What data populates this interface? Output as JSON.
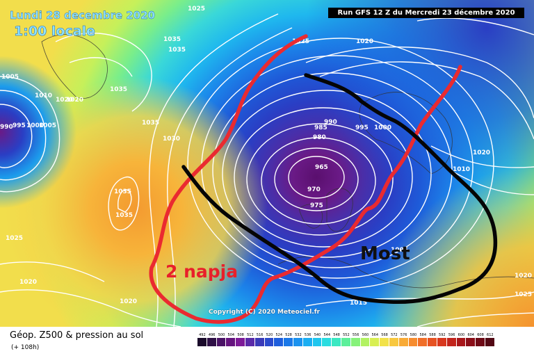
{
  "header": {
    "valid_date": "Lundi 28 decembre 2020",
    "local_time": "1:00 locale",
    "run_info": "Run GFS 12 Z du Mercredi 23 décembre 2020"
  },
  "annotations": {
    "most": "Most",
    "napja": "2 napja"
  },
  "copyright": "Copyright (C) 2020 Meteociel.fr",
  "footer": {
    "title": "Géop. Z500 & pression au sol",
    "lead_time": "(+ 108h)"
  },
  "isobar_labels": [
    {
      "text": "1025"
    },
    {
      "text": "1035"
    },
    {
      "text": "1005"
    },
    {
      "text": "1010"
    },
    {
      "text": "1020"
    },
    {
      "text": "1035"
    },
    {
      "text": "1035"
    },
    {
      "text": "1020"
    },
    {
      "text": "990"
    },
    {
      "text": "995"
    },
    {
      "text": "1000"
    },
    {
      "text": "1005"
    },
    {
      "text": "1035"
    },
    {
      "text": "1030"
    },
    {
      "text": "1035"
    },
    {
      "text": "1035"
    },
    {
      "text": "1025"
    },
    {
      "text": "1020"
    },
    {
      "text": "1020"
    },
    {
      "text": "1025"
    },
    {
      "text": "1020"
    },
    {
      "text": "990"
    },
    {
      "text": "985"
    },
    {
      "text": "980"
    },
    {
      "text": "965"
    },
    {
      "text": "970"
    },
    {
      "text": "975"
    },
    {
      "text": "995"
    },
    {
      "text": "1000"
    },
    {
      "text": "1020"
    },
    {
      "text": "1010"
    },
    {
      "text": "1005"
    },
    {
      "text": "1015"
    },
    {
      "text": "1020"
    },
    {
      "text": "1025"
    }
  ],
  "legend_scale": {
    "labels": [
      "492",
      "496",
      "500",
      "504",
      "508",
      "512",
      "516",
      "520",
      "524",
      "528",
      "532",
      "536",
      "540",
      "544",
      "548",
      "552",
      "556",
      "560",
      "564",
      "568",
      "572",
      "576",
      "580",
      "584",
      "588",
      "592",
      "596",
      "600",
      "604",
      "608",
      "612"
    ],
    "colors": [
      "#1a0a2a",
      "#2e0f45",
      "#4a1265",
      "#65137e",
      "#7d1a97",
      "#5a2aa8",
      "#3a3ab8",
      "#2a4acc",
      "#1e5edc",
      "#1a78e8",
      "#1a92ef",
      "#1aaef2",
      "#1fc6ee",
      "#2adce0",
      "#3ae8c2",
      "#5cef9a",
      "#86f27a",
      "#b2f262",
      "#d8ef52",
      "#f2e24a",
      "#f8c840",
      "#f8aa36",
      "#f68c2e",
      "#f06e28",
      "#e65222",
      "#d8381e",
      "#c2241c",
      "#a8161a",
      "#8a0e18",
      "#6e0a16",
      "#520814"
    ]
  },
  "colors": {
    "route_red": "#ea2a30",
    "route_black": "#050505"
  }
}
